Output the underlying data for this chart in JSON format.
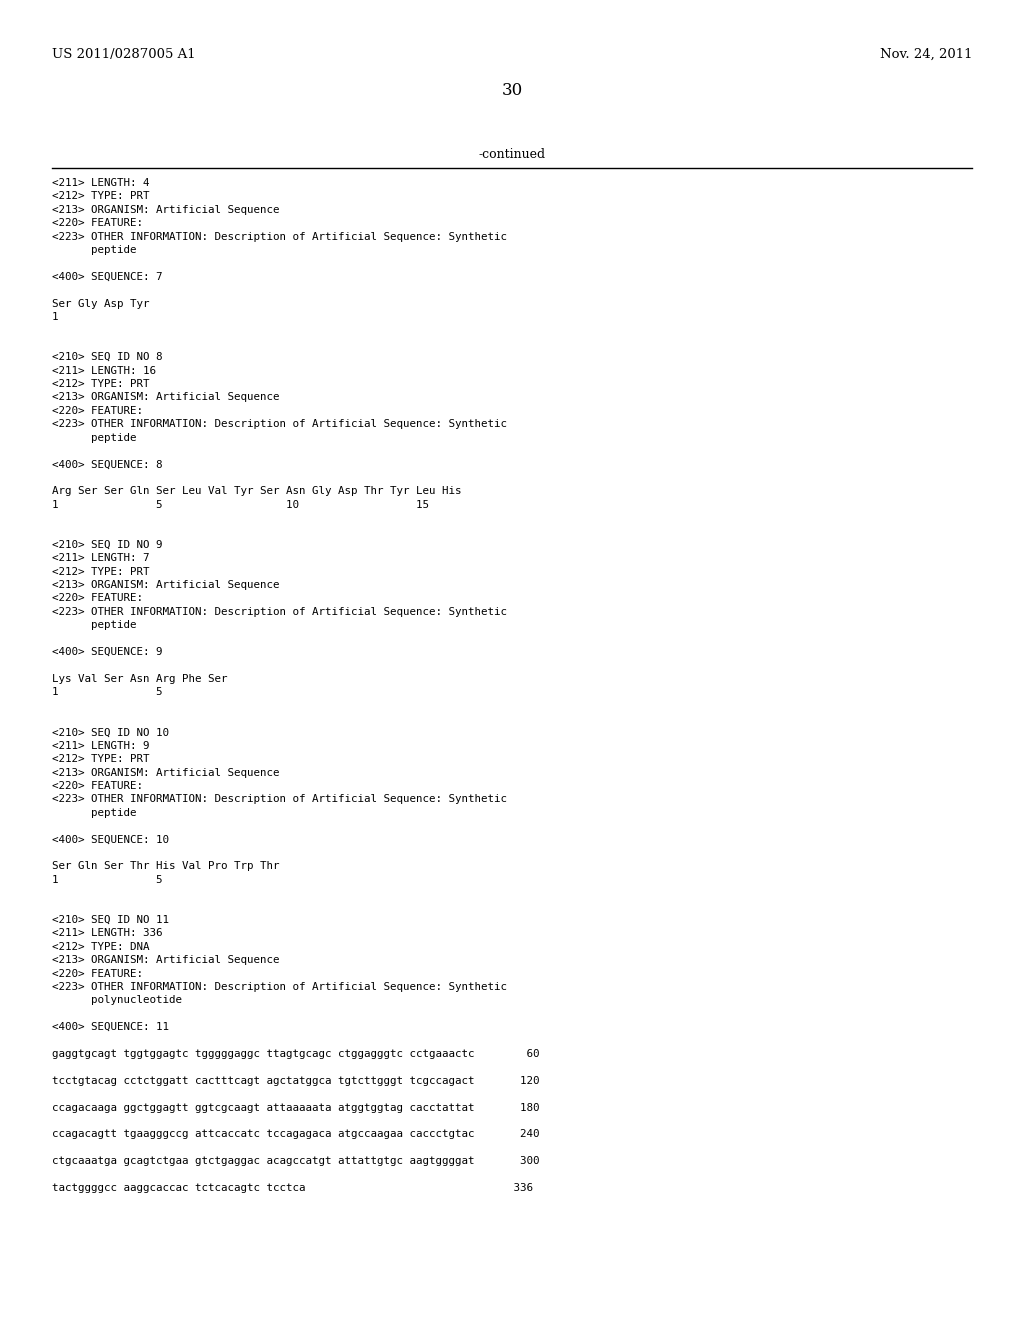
{
  "header_left": "US 2011/0287005 A1",
  "header_right": "Nov. 24, 2011",
  "page_number": "30",
  "continued_label": "-continued",
  "background_color": "#ffffff",
  "text_color": "#000000",
  "font_size_header": 9.5,
  "font_size_page": 12,
  "font_size_continued": 9.0,
  "mono_font_size": 7.8,
  "lines": [
    "<211> LENGTH: 4",
    "<212> TYPE: PRT",
    "<213> ORGANISM: Artificial Sequence",
    "<220> FEATURE:",
    "<223> OTHER INFORMATION: Description of Artificial Sequence: Synthetic",
    "      peptide",
    "",
    "<400> SEQUENCE: 7",
    "",
    "Ser Gly Asp Tyr",
    "1",
    "",
    "",
    "<210> SEQ ID NO 8",
    "<211> LENGTH: 16",
    "<212> TYPE: PRT",
    "<213> ORGANISM: Artificial Sequence",
    "<220> FEATURE:",
    "<223> OTHER INFORMATION: Description of Artificial Sequence: Synthetic",
    "      peptide",
    "",
    "<400> SEQUENCE: 8",
    "",
    "Arg Ser Ser Gln Ser Leu Val Tyr Ser Asn Gly Asp Thr Tyr Leu His",
    "1               5                   10                  15",
    "",
    "",
    "<210> SEQ ID NO 9",
    "<211> LENGTH: 7",
    "<212> TYPE: PRT",
    "<213> ORGANISM: Artificial Sequence",
    "<220> FEATURE:",
    "<223> OTHER INFORMATION: Description of Artificial Sequence: Synthetic",
    "      peptide",
    "",
    "<400> SEQUENCE: 9",
    "",
    "Lys Val Ser Asn Arg Phe Ser",
    "1               5",
    "",
    "",
    "<210> SEQ ID NO 10",
    "<211> LENGTH: 9",
    "<212> TYPE: PRT",
    "<213> ORGANISM: Artificial Sequence",
    "<220> FEATURE:",
    "<223> OTHER INFORMATION: Description of Artificial Sequence: Synthetic",
    "      peptide",
    "",
    "<400> SEQUENCE: 10",
    "",
    "Ser Gln Ser Thr His Val Pro Trp Thr",
    "1               5",
    "",
    "",
    "<210> SEQ ID NO 11",
    "<211> LENGTH: 336",
    "<212> TYPE: DNA",
    "<213> ORGANISM: Artificial Sequence",
    "<220> FEATURE:",
    "<223> OTHER INFORMATION: Description of Artificial Sequence: Synthetic",
    "      polynucleotide",
    "",
    "<400> SEQUENCE: 11",
    "",
    "gaggtgcagt tggtggagtc tgggggaggc ttagtgcagc ctggagggtc cctgaaactc        60",
    "",
    "tcctgtacag cctctggatt cactttcagt agctatggca tgtcttgggt tcgccagact       120",
    "",
    "ccagacaaga ggctggagtt ggtcgcaagt attaaaaata atggtggtag cacctattat       180",
    "",
    "ccagacagtt tgaagggccg attcaccatc tccagagaca atgccaagaa caccctgtac       240",
    "",
    "ctgcaaatga gcagtctgaa gtctgaggac acagccatgt attattgtgc aagtggggat       300",
    "",
    "tactggggcc aaggcaccac tctcacagtc tcctca                                336"
  ]
}
